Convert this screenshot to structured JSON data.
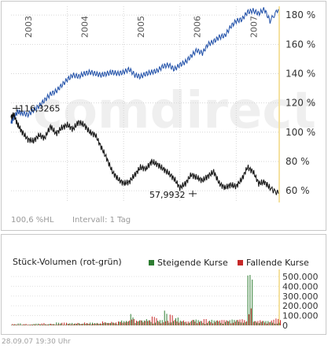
{
  "chart_data": [
    {
      "type": "line",
      "title": "",
      "xlabel": "",
      "ylabel": "",
      "x_axis_labels": [
        "2003",
        "2004",
        "2005",
        "2006",
        "2007"
      ],
      "y_ticks": [
        "60 %",
        "80 %",
        "100 %",
        "120 %",
        "140 %",
        "160 %",
        "180 %"
      ],
      "ylim": [
        52,
        186
      ],
      "grid": true,
      "watermark": "comdirect",
      "annotations": [
        {
          "text": "116,3265",
          "x": 0.0,
          "y": 116.3
        },
        {
          "text": "57,9932",
          "x": 3.13,
          "y": 58.0
        }
      ],
      "footer": {
        "left": "100,6 %HL",
        "right": "Intervall: 1 Tag"
      },
      "series": [
        {
          "color": "#1f4fa8",
          "x": [
            0.0,
            0.05,
            0.12,
            0.2,
            0.3,
            0.4,
            0.5,
            0.6,
            0.7,
            0.8,
            0.9,
            1.0,
            1.1,
            1.2,
            1.3,
            1.4,
            1.5,
            1.6,
            1.7,
            1.8,
            1.9,
            2.0,
            2.1,
            2.2,
            2.3,
            2.4,
            2.5,
            2.6,
            2.7,
            2.8,
            2.9,
            3.0,
            3.1,
            3.2,
            3.3,
            3.4,
            3.5,
            3.6,
            3.7,
            3.8,
            3.9,
            4.0,
            4.1,
            4.2,
            4.3,
            4.4,
            4.5,
            4.6,
            4.75
          ],
          "y": [
            106,
            110,
            114,
            113,
            112,
            115,
            118,
            122,
            126,
            128,
            132,
            136,
            139,
            138,
            140,
            141,
            140,
            139,
            140,
            141,
            140,
            141,
            143,
            139,
            138,
            140,
            141,
            142,
            145,
            146,
            143,
            146,
            148,
            152,
            156,
            154,
            160,
            162,
            165,
            166,
            172,
            176,
            177,
            182,
            183,
            181,
            184,
            176,
            184
          ]
        },
        {
          "color": "#111111",
          "x": [
            0.0,
            0.05,
            0.12,
            0.2,
            0.3,
            0.4,
            0.5,
            0.6,
            0.7,
            0.8,
            0.9,
            1.0,
            1.1,
            1.2,
            1.3,
            1.4,
            1.5,
            1.6,
            1.7,
            1.8,
            1.9,
            2.0,
            2.1,
            2.2,
            2.3,
            2.4,
            2.5,
            2.6,
            2.7,
            2.8,
            2.9,
            3.0,
            3.1,
            3.2,
            3.3,
            3.4,
            3.5,
            3.6,
            3.7,
            3.8,
            3.9,
            4.0,
            4.1,
            4.2,
            4.3,
            4.4,
            4.5,
            4.6,
            4.75
          ],
          "y": [
            110,
            112,
            105,
            100,
            95,
            94,
            98,
            96,
            104,
            99,
            103,
            105,
            102,
            107,
            105,
            100,
            98,
            90,
            82,
            73,
            68,
            65,
            66,
            71,
            76,
            75,
            80,
            78,
            75,
            72,
            68,
            62,
            65,
            71,
            69,
            67,
            70,
            73,
            65,
            62,
            64,
            63,
            68,
            76,
            73,
            65,
            66,
            62,
            58
          ]
        }
      ]
    },
    {
      "type": "bar",
      "title": "Stück-Volumen (rot-grün)",
      "legend": [
        {
          "name": "Steigende Kurse",
          "color": "#2e7d32"
        },
        {
          "name": "Fallende Kurse",
          "color": "#c62828"
        }
      ],
      "y_ticks": [
        "0",
        "100.000",
        "200.000",
        "300.000",
        "400.000",
        "500.000"
      ],
      "ylim": [
        0,
        540000
      ],
      "x": [
        0.0,
        0.1,
        0.2,
        0.3,
        0.4,
        0.5,
        0.6,
        0.7,
        0.8,
        0.9,
        1.0,
        1.1,
        1.2,
        1.3,
        1.4,
        1.5,
        1.6,
        1.7,
        1.8,
        1.9,
        2.0,
        2.1,
        2.2,
        2.3,
        2.4,
        2.5,
        2.6,
        2.7,
        2.8,
        2.9,
        3.0,
        3.1,
        3.2,
        3.3,
        3.4,
        3.5,
        3.6,
        3.7,
        3.8,
        3.9,
        4.0,
        4.1,
        4.2,
        4.3,
        4.4,
        4.5,
        4.6,
        4.7
      ],
      "volume_rising": [
        12000,
        20000,
        8000,
        15000,
        18000,
        10000,
        22000,
        14000,
        30000,
        12000,
        25000,
        18000,
        35000,
        20000,
        28000,
        40000,
        30000,
        25000,
        35000,
        60000,
        45000,
        150000,
        60000,
        50000,
        70000,
        40000,
        55000,
        170000,
        60000,
        80000,
        50000,
        45000,
        60000,
        55000,
        40000,
        60000,
        50000,
        45000,
        55000,
        60000,
        70000,
        40000,
        520000,
        60000,
        50000,
        45000,
        40000,
        35000
      ],
      "volume_falling": [
        15000,
        10000,
        18000,
        9000,
        12000,
        25000,
        10000,
        20000,
        15000,
        28000,
        18000,
        30000,
        15000,
        32000,
        25000,
        20000,
        45000,
        50000,
        30000,
        40000,
        70000,
        65000,
        50000,
        80000,
        55000,
        90000,
        60000,
        50000,
        110000,
        70000,
        60000,
        40000,
        75000,
        50000,
        65000,
        45000,
        70000,
        55000,
        60000,
        50000,
        60000,
        65000,
        300000,
        45000,
        55000,
        50000,
        60000,
        70000
      ]
    }
  ],
  "datetime": "28.09.07   19:30 Uhr"
}
